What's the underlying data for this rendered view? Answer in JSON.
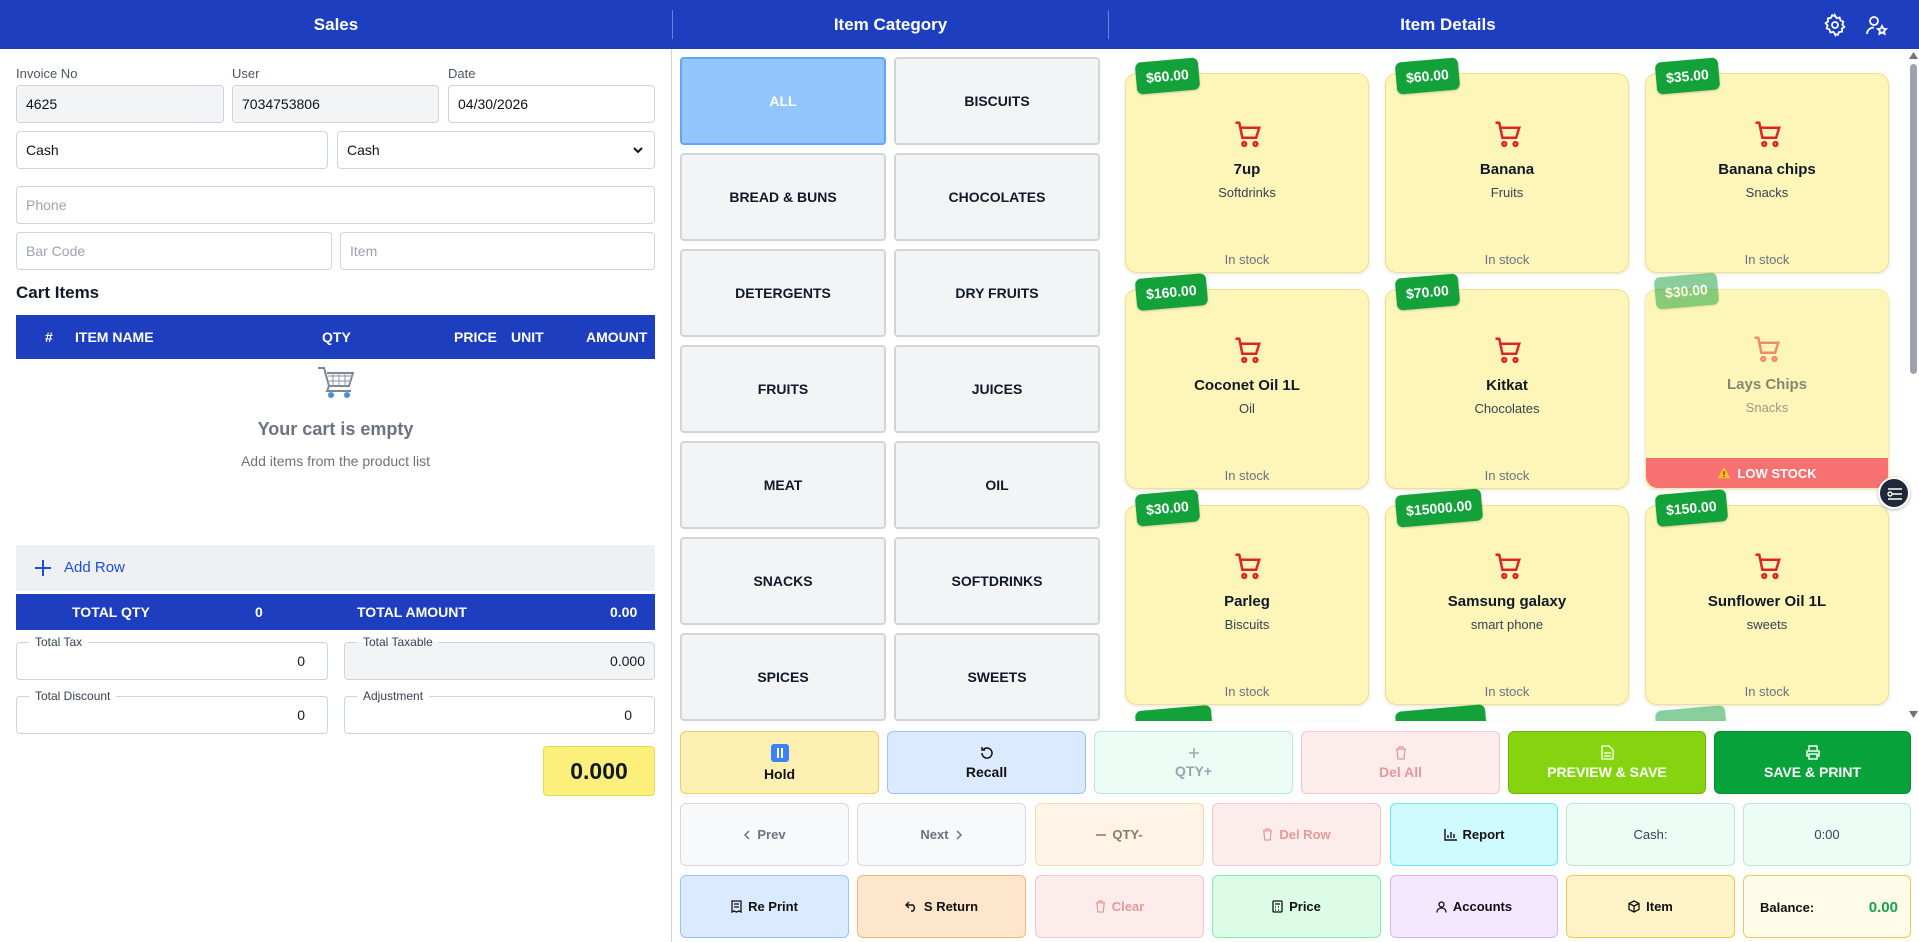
{
  "header": {
    "sales": "Sales",
    "category": "Item Category",
    "details": "Item Details",
    "settings_icon": "gear-icon",
    "user_icon": "user-star-icon"
  },
  "invoice": {
    "invoice_label": "Invoice No",
    "invoice_value": "4625",
    "user_label": "User",
    "user_value": "7034753806",
    "date_label": "Date",
    "date_value": "04/30/2026",
    "payment_text": "Cash",
    "payment_select": "Cash",
    "phone_placeholder": "Phone",
    "barcode_placeholder": "Bar Code",
    "item_placeholder": "Item"
  },
  "cart": {
    "title": "Cart Items",
    "columns": [
      "#",
      "ITEM NAME",
      "QTY",
      "PRICE",
      "UNIT",
      "AMOUNT"
    ],
    "empty_title": "Your cart is empty",
    "empty_sub": "Add items from the product list",
    "add_row": "Add Row",
    "total_qty_label": "TOTAL QTY",
    "total_qty": "0",
    "total_amount_label": "TOTAL AMOUNT",
    "total_amount": "0.00"
  },
  "summary": {
    "tax_label": "Total Tax",
    "tax": "0",
    "taxable_label": "Total Taxable",
    "taxable": "0.000",
    "discount_label": "Total Discount",
    "discount": "0",
    "adjustment_label": "Adjustment",
    "adjustment": "0",
    "grand_total": "0.000"
  },
  "categories": [
    "ALL",
    "BISCUITS",
    "BREAD & BUNS",
    "CHOCOLATES",
    "DETERGENTS",
    "DRY FRUITS",
    "FRUITS",
    "JUICES",
    "MEAT",
    "OIL",
    "SNACKS",
    "SOFTDRINKS",
    "SPICES",
    "SWEETS"
  ],
  "items": [
    {
      "price": "$60.00",
      "name": "7up",
      "category": "Softdrinks",
      "stock": "In stock"
    },
    {
      "price": "$60.00",
      "name": "Banana",
      "category": "Fruits",
      "stock": "In stock"
    },
    {
      "price": "$35.00",
      "name": "Banana chips",
      "category": "Snacks",
      "stock": "In stock"
    },
    {
      "price": "$160.00",
      "name": "Coconet Oil 1L",
      "category": "Oil",
      "stock": "In stock"
    },
    {
      "price": "$70.00",
      "name": "Kitkat",
      "category": "Chocolates",
      "stock": "In stock"
    },
    {
      "price": "$30.00",
      "name": "Lays Chips",
      "category": "Snacks",
      "stock": "LOW STOCK"
    },
    {
      "price": "$30.00",
      "name": "Parleg",
      "category": "Biscuits",
      "stock": "In stock"
    },
    {
      "price": "$15000.00",
      "name": "Samsung galaxy",
      "category": "smart phone",
      "stock": "In stock"
    },
    {
      "price": "$150.00",
      "name": "Sunflower Oil 1L",
      "category": "sweets",
      "stock": "In stock"
    }
  ],
  "actions": {
    "hold": "Hold",
    "recall": "Recall",
    "qty_plus": "QTY+",
    "del_all": "Del All",
    "preview_save": "PREVIEW & SAVE",
    "save_print": "SAVE & PRINT",
    "prev": "Prev",
    "next": "Next",
    "qty_minus": "QTY-",
    "del_row": "Del Row",
    "report": "Report",
    "cash_label": "Cash:",
    "cash_value": "0:00",
    "reprint": "Re Print",
    "s_return": "S Return",
    "clear": "Clear",
    "price": "Price",
    "accounts": "Accounts",
    "item": "Item",
    "balance_label": "Balance:",
    "balance_value": "0.00",
    "balance_color": "#16a34a"
  }
}
